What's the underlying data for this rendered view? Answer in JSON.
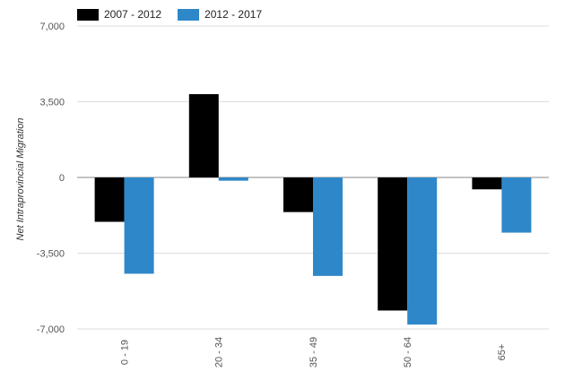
{
  "chart_data": {
    "type": "bar",
    "ylabel": "Net Intraprovincial Migration",
    "xlabel": "",
    "categories": [
      "0 - 19",
      "20 - 34",
      "35 - 49",
      "50 - 64",
      "65+"
    ],
    "series": [
      {
        "name": "2007 - 2012",
        "color": "#000000",
        "values": [
          -2050,
          3850,
          -1600,
          -6150,
          -550
        ]
      },
      {
        "name": "2012 - 2017",
        "color": "#2e87c8",
        "values": [
          -4450,
          -150,
          -4550,
          -6800,
          -2550
        ]
      }
    ],
    "ylim": [
      -7000,
      7000
    ],
    "yticks": [
      7000,
      3500,
      0,
      -3500,
      -7000
    ],
    "ytick_labels": [
      "7,000",
      "3,500",
      "0",
      "-3,500",
      "-7,000"
    ],
    "grid": true,
    "legend_position": "top-left"
  }
}
